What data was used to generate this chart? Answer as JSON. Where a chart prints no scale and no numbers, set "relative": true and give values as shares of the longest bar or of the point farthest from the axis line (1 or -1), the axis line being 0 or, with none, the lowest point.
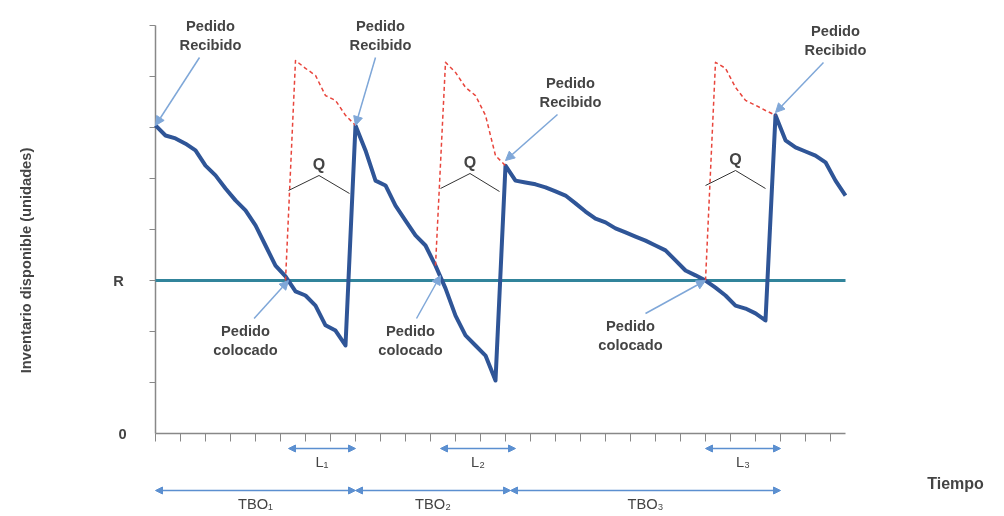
{
  "chart_data": {
    "type": "line",
    "relative": true,
    "line_style": "solid",
    "grid": false,
    "categories": [
      null,
      null,
      null,
      null,
      null,
      null,
      null,
      null,
      null,
      null,
      null,
      null,
      null,
      null,
      null,
      null,
      null,
      null,
      null,
      null,
      null,
      null,
      null,
      null,
      null,
      null,
      null,
      null,
      null,
      null,
      null,
      null,
      null,
      null,
      null,
      null,
      null,
      null,
      null,
      null,
      null,
      null,
      null,
      null,
      null,
      null,
      null,
      null,
      null,
      null,
      null,
      null,
      null,
      null,
      null,
      null,
      null,
      null,
      null,
      null,
      null,
      null,
      null,
      null,
      null,
      null,
      null,
      null,
      null,
      null
    ],
    "series": [
      {
        "color": "#2f5597",
        "values": [
          0.826,
          0.799,
          0.791,
          0.777,
          0.759,
          0.718,
          0.692,
          0.657,
          0.625,
          0.598,
          0.558,
          0.504,
          0.45,
          0.421,
          0.381,
          0.37,
          0.343,
          0.29,
          0.276,
          0.236,
          0.826,
          0.759,
          0.678,
          0.665,
          0.611,
          0.571,
          0.531,
          0.504,
          0.45,
          0.389,
          0.316,
          0.263,
          0.236,
          0.209,
          0.142,
          0.718,
          0.678,
          0.673,
          0.668,
          0.66,
          0.649,
          0.638,
          0.617,
          0.595,
          0.576,
          0.566,
          0.55,
          0.539,
          0.528,
          0.517,
          0.504,
          0.491,
          0.464,
          0.437,
          0.424,
          0.41,
          0.391,
          0.37,
          0.343,
          0.335,
          0.322,
          0.303,
          0.853,
          0.786,
          0.767,
          0.756,
          0.745,
          0.727,
          0.678,
          0.638
        ]
      },
      {
        "color": "#e8453c",
        "line_style": "dashed",
        "values": [
          null,
          null,
          null,
          null,
          null,
          null,
          null,
          null,
          null,
          null,
          null,
          null,
          null,
          0.41,
          1,
          0.979,
          0.96,
          0.906,
          0.893,
          0.853,
          0.826,
          null,
          null,
          null,
          null,
          null,
          null,
          null,
          null,
          null,
          null,
          null,
          null,
          null,
          null,
          null,
          null,
          null,
          null,
          null,
          null,
          null,
          null,
          null,
          null,
          null,
          null,
          null,
          null,
          null,
          null,
          null,
          null,
          null,
          null,
          null,
          null,
          null,
          null,
          null,
          null,
          null,
          null,
          null,
          null,
          null,
          null,
          null,
          null,
          null
        ]
      },
      {
        "color": "#e8453c",
        "line_style": "dashed",
        "values": [
          null,
          null,
          null,
          null,
          null,
          null,
          null,
          null,
          null,
          null,
          null,
          null,
          null,
          null,
          null,
          null,
          null,
          null,
          null,
          null,
          null,
          null,
          null,
          null,
          null,
          null,
          null,
          null,
          0.45,
          0.995,
          0.968,
          0.928,
          0.906,
          0.853,
          0.745,
          0.718,
          null,
          null,
          null,
          null,
          null,
          null,
          null,
          null,
          null,
          null,
          null,
          null,
          null,
          null,
          null,
          null,
          null,
          null,
          null,
          null,
          null,
          null,
          null,
          null,
          null,
          null,
          null,
          null,
          null,
          null,
          null,
          null,
          null,
          null
        ]
      },
      {
        "color": "#e8453c",
        "line_style": "dashed",
        "values": [
          null,
          null,
          null,
          null,
          null,
          null,
          null,
          null,
          null,
          null,
          null,
          null,
          null,
          null,
          null,
          null,
          null,
          null,
          null,
          null,
          null,
          null,
          null,
          null,
          null,
          null,
          null,
          null,
          null,
          null,
          null,
          null,
          null,
          null,
          null,
          null,
          null,
          null,
          null,
          null,
          null,
          null,
          null,
          null,
          null,
          null,
          null,
          null,
          null,
          null,
          null,
          null,
          null,
          null,
          null,
          0.41,
          0.995,
          0.979,
          0.928,
          0.893,
          0.88,
          0.866,
          0.853,
          null,
          null,
          null,
          null,
          null,
          null,
          null
        ]
      }
    ],
    "ref_lines": [
      {
        "axis": "y",
        "value": 0.41,
        "label": "R",
        "color": "#31849b"
      }
    ],
    "annotations": [
      "0",
      "Pedido\nRecibido",
      "Pedido\nRecibido",
      "Pedido\nRecibido",
      "Pedido\nRecibido",
      "Pedido\ncolocado",
      "Pedido\ncolocado",
      "Pedido\ncolocado",
      "Q",
      "Q",
      "Q",
      "L₁",
      "L₂",
      "L₃",
      "TBO₁",
      "TBO₂",
      "TBO₃",
      "Tiempo",
      "Inventario disponible (unidades)"
    ]
  }
}
